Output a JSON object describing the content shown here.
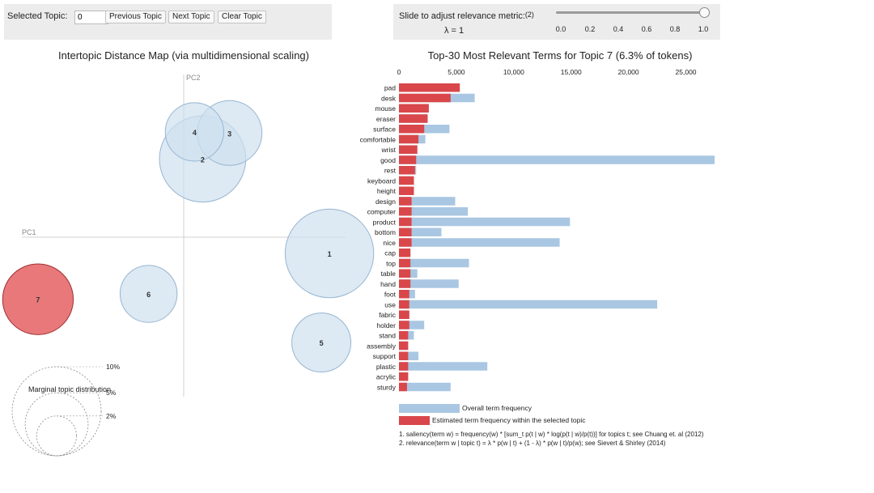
{
  "controls": {
    "selected_topic_label": "Selected Topic:",
    "selected_topic_value": "0",
    "prev_label": "Previous Topic",
    "next_label": "Next Topic",
    "clear_label": "Clear Topic",
    "slider_label": "Slide to adjust relevance metric:",
    "slider_footnote_marker": "(2)",
    "lambda_text": "λ = 1",
    "lambda_value": 1,
    "slider_ticks": [
      "0.0",
      "0.2",
      "0.4",
      "0.6",
      "0.8",
      "1.0"
    ]
  },
  "map": {
    "title": "Intertopic Distance Map (via multidimensional scaling)",
    "pc1_label": "PC1",
    "pc2_label": "PC2",
    "marginal_title": "Marginal topic distribution",
    "marginal_labels": [
      "2%",
      "5%",
      "10%"
    ]
  },
  "barchart": {
    "title": "Top-30 Most Relevant Terms for Topic 7 (6.3% of tokens)",
    "legend_overall": "Overall term frequency",
    "legend_estimated": "Estimated term frequency within the selected topic",
    "footnote1": "1. saliency(term w) = frequency(w) * [sum_t p(t | w) * log(p(t | w)/p(t))] for topics t; see Chuang et. al (2012)",
    "footnote2": "2. relevance(term w | topic t) = λ * p(w | t) + (1 - λ) * p(w | t)/p(w); see Sievert & Shirley (2014)"
  },
  "colors": {
    "overall": "#a9c7e2",
    "estimated": "#d9474a",
    "bubble_fill": "#cfdfee",
    "bubble_stroke": "#96b6d2",
    "selected_fill": "#e8787a",
    "selected_stroke": "#a03234"
  },
  "chart_data": [
    {
      "type": "scatter",
      "title": "Intertopic Distance Map (via multidimensional scaling)",
      "xlabel": "PC1",
      "ylabel": "PC2",
      "xlim": [
        -0.3,
        0.3
      ],
      "ylim": [
        -0.3,
        0.3
      ],
      "selected_topic": 7,
      "points": [
        {
          "topic": "1",
          "x": 0.27,
          "y": -0.03,
          "marginal_pct": 9.9
        },
        {
          "topic": "2",
          "x": 0.035,
          "y": 0.145,
          "marginal_pct": 9.4
        },
        {
          "topic": "3",
          "x": 0.085,
          "y": 0.193,
          "marginal_pct": 5.3
        },
        {
          "topic": "4",
          "x": 0.02,
          "y": 0.195,
          "marginal_pct": 4.3
        },
        {
          "topic": "5",
          "x": 0.255,
          "y": -0.195,
          "marginal_pct": 4.4
        },
        {
          "topic": "6",
          "x": -0.065,
          "y": -0.105,
          "marginal_pct": 4.1
        },
        {
          "topic": "7",
          "x": -0.27,
          "y": -0.115,
          "marginal_pct": 6.3
        }
      ],
      "marginal_legend": [
        2,
        5,
        10
      ]
    },
    {
      "type": "bar",
      "title": "Top-30 Most Relevant Terms for Topic 7 (6.3% of tokens)",
      "orientation": "horizontal",
      "xlim": [
        0,
        27500
      ],
      "xticks": [
        0,
        5000,
        10000,
        15000,
        20000,
        25000
      ],
      "xtick_labels": [
        "0",
        "5,000",
        "10,000",
        "15,000",
        "20,000",
        "25,000"
      ],
      "categories": [
        "pad",
        "desk",
        "mouse",
        "eraser",
        "surface",
        "comfortable",
        "wrist",
        "good",
        "rest",
        "keyboard",
        "height",
        "design",
        "computer",
        "product",
        "bottom",
        "nice",
        "cap",
        "top",
        "table",
        "hand",
        "foot",
        "use",
        "fabric",
        "holder",
        "stand",
        "assembly",
        "support",
        "plastic",
        "acrylic",
        "sturdy"
      ],
      "series": [
        {
          "name": "Overall term frequency",
          "values": [
            5300,
            6600,
            2600,
            2500,
            4400,
            2300,
            1600,
            27500,
            1500,
            1300,
            1300,
            4900,
            6000,
            14900,
            3700,
            14000,
            1000,
            6100,
            1600,
            5200,
            1400,
            22500,
            900,
            2200,
            1300,
            800,
            1700,
            7700,
            800,
            4500
          ]
        },
        {
          "name": "Estimated term frequency within the selected topic",
          "values": [
            5300,
            4500,
            2600,
            2500,
            2200,
            1700,
            1600,
            1500,
            1400,
            1300,
            1300,
            1100,
            1100,
            1100,
            1100,
            1100,
            1000,
            1000,
            1000,
            1000,
            900,
            900,
            900,
            900,
            800,
            800,
            800,
            800,
            800,
            700
          ]
        }
      ]
    }
  ]
}
